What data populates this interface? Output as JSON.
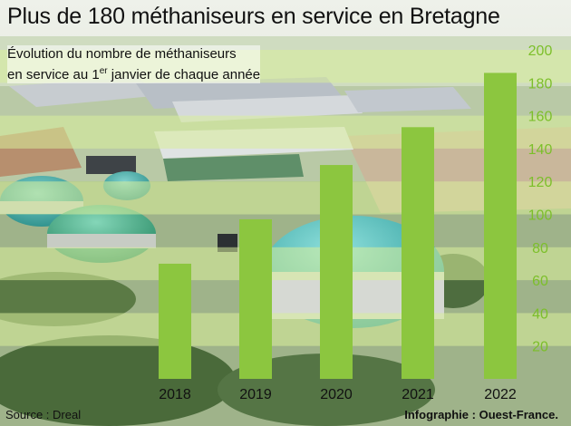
{
  "title": "Plus de 180 méthaniseurs en service en Bretagne",
  "subtitle": {
    "line1": "Évolution du nombre de méthaniseurs",
    "line2_prefix": "en service au 1",
    "line2_sup": "er",
    "line2_suffix": " janvier de chaque année"
  },
  "source": "Source : Dreal",
  "credit": "Infographie : Ouest-France.",
  "colors": {
    "bar": "#8cc63f",
    "axis_label": "#7cbf2a",
    "band": "#d8ee9a"
  },
  "chart_data": {
    "type": "bar",
    "title": "Plus de 180 méthaniseurs en service en Bretagne",
    "subtitle": "Évolution du nombre de méthaniseurs en service au 1er janvier de chaque année",
    "categories": [
      "2018",
      "2019",
      "2020",
      "2021",
      "2022"
    ],
    "values": [
      70,
      97,
      130,
      153,
      186
    ],
    "ylim": [
      0,
      200
    ],
    "yticks": [
      "20",
      "40",
      "60",
      "80",
      "100",
      "120",
      "140",
      "160",
      "180",
      "200"
    ],
    "ytick_values": [
      20,
      40,
      60,
      80,
      100,
      120,
      140,
      160,
      180,
      200
    ],
    "y_axis_position": "right",
    "grid": "alternating horizontal bands"
  }
}
